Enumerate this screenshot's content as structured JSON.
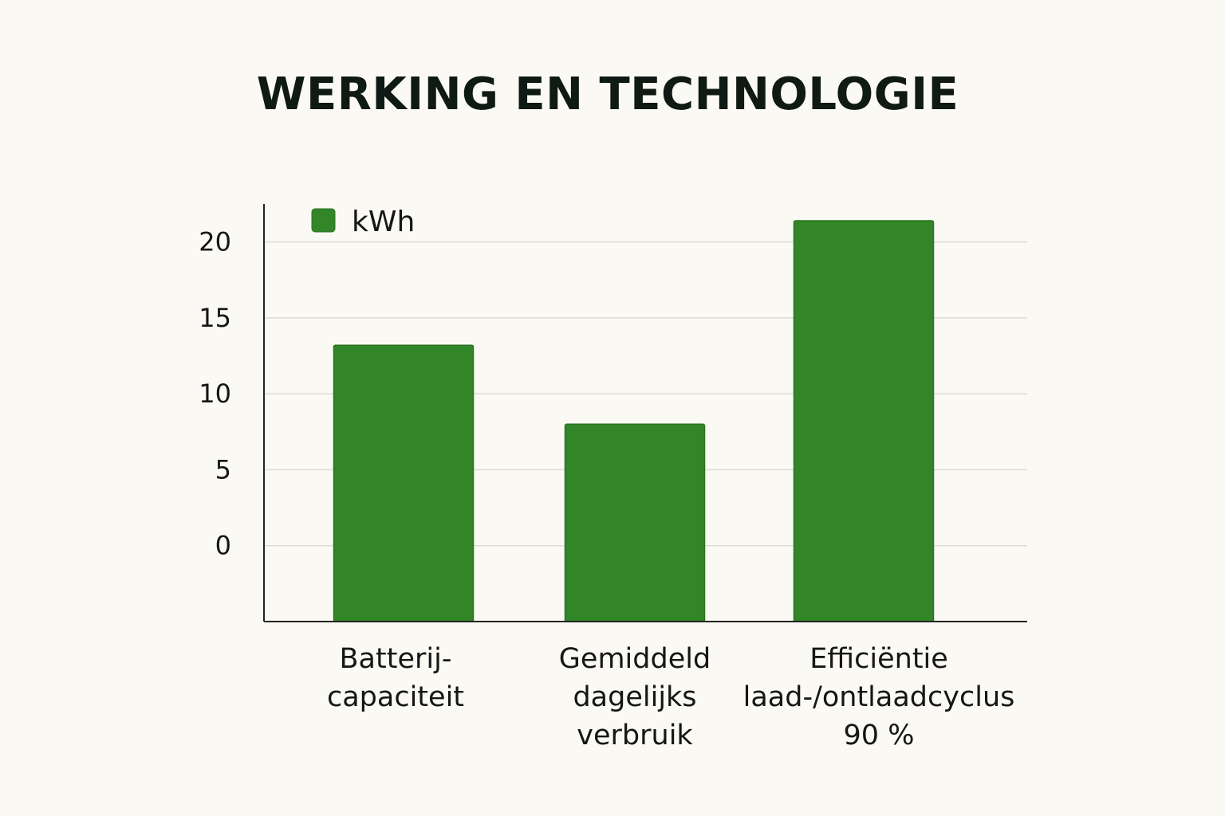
{
  "chart_data": {
    "type": "bar",
    "title": "WERKING EN TECHNOLOGIE",
    "categories": [
      [
        "Batterij-",
        "capaciteit"
      ],
      [
        "Gemiddeld",
        "dagelijks",
        "verbruik"
      ],
      [
        "Efficiëntie",
        "laad-/ontlaadcyclus",
        "90 %"
      ]
    ],
    "series": [
      {
        "name": "kWh",
        "values": [
          13.2,
          8.0,
          21.4
        ]
      }
    ],
    "yticks": [
      0,
      5,
      10,
      15,
      20
    ],
    "ylim": [
      -5,
      22.5
    ],
    "grid": true,
    "legend": "top-left",
    "bar_color": "#338628",
    "bar_edge_color": "#2a7322",
    "axis_color": "#222222",
    "grid_color": "#dcdcd6"
  }
}
